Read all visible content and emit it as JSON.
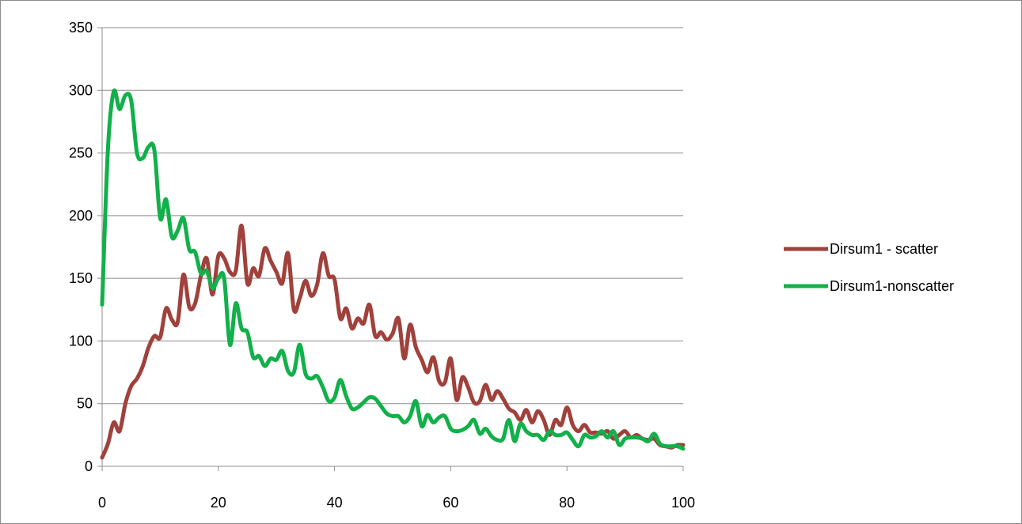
{
  "chart_data": {
    "type": "line",
    "title": "",
    "xlabel": "",
    "ylabel": "",
    "xlim": [
      0,
      100
    ],
    "ylim": [
      0,
      350
    ],
    "x_ticks": [
      0,
      20,
      40,
      60,
      80,
      100
    ],
    "y_ticks": [
      0,
      50,
      100,
      150,
      200,
      250,
      300,
      350
    ],
    "grid": "horizontal",
    "legend_position": "right",
    "series": [
      {
        "name": "Dirsum1 - scatter",
        "color": "#a0413c",
        "x": [
          0,
          1,
          2,
          3,
          4,
          5,
          6,
          7,
          8,
          9,
          10,
          11,
          12,
          13,
          14,
          15,
          16,
          17,
          18,
          19,
          20,
          21,
          22,
          23,
          24,
          25,
          26,
          27,
          28,
          29,
          30,
          31,
          32,
          33,
          34,
          35,
          36,
          37,
          38,
          39,
          40,
          41,
          42,
          43,
          44,
          45,
          46,
          47,
          48,
          49,
          50,
          51,
          52,
          53,
          54,
          55,
          56,
          57,
          58,
          59,
          60,
          61,
          62,
          63,
          64,
          65,
          66,
          67,
          68,
          69,
          70,
          71,
          72,
          73,
          74,
          75,
          76,
          77,
          78,
          79,
          80,
          81,
          82,
          83,
          84,
          85,
          86,
          87,
          88,
          89,
          90,
          91,
          92,
          93,
          94,
          95,
          96,
          97,
          98,
          99,
          100
        ],
        "values": [
          7,
          18,
          35,
          28,
          50,
          64,
          70,
          80,
          95,
          104,
          103,
          126,
          117,
          115,
          153,
          127,
          130,
          152,
          166,
          137,
          168,
          166,
          155,
          156,
          192,
          146,
          158,
          152,
          174,
          164,
          155,
          146,
          170,
          125,
          134,
          148,
          136,
          145,
          170,
          152,
          149,
          118,
          126,
          110,
          118,
          114,
          129,
          104,
          107,
          101,
          106,
          118,
          86,
          113,
          95,
          85,
          75,
          87,
          68,
          67,
          86,
          53,
          71,
          63,
          51,
          52,
          65,
          53,
          60,
          54,
          46,
          43,
          37,
          45,
          35,
          44,
          37,
          25,
          37,
          33,
          47,
          33,
          28,
          33,
          27,
          27,
          26,
          28,
          22,
          25,
          28,
          23,
          25,
          22,
          21,
          22,
          17,
          16,
          15,
          17,
          17
        ]
      },
      {
        "name": "Dirsum1-nonscatter",
        "color": "#12b04a",
        "x": [
          0,
          1,
          2,
          3,
          4,
          5,
          6,
          7,
          8,
          9,
          10,
          11,
          12,
          13,
          14,
          15,
          16,
          17,
          18,
          19,
          20,
          21,
          22,
          23,
          24,
          25,
          26,
          27,
          28,
          29,
          30,
          31,
          32,
          33,
          34,
          35,
          36,
          37,
          38,
          39,
          40,
          41,
          42,
          43,
          44,
          45,
          46,
          47,
          48,
          49,
          50,
          51,
          52,
          53,
          54,
          55,
          56,
          57,
          58,
          59,
          60,
          61,
          62,
          63,
          64,
          65,
          66,
          67,
          68,
          69,
          70,
          71,
          72,
          73,
          74,
          75,
          76,
          77,
          78,
          79,
          80,
          81,
          82,
          83,
          84,
          85,
          86,
          87,
          88,
          89,
          90,
          91,
          92,
          93,
          94,
          95,
          96,
          97,
          98,
          99,
          100
        ],
        "values": [
          129,
          253,
          299,
          285,
          296,
          292,
          250,
          246,
          255,
          252,
          198,
          213,
          183,
          188,
          198,
          173,
          171,
          154,
          156,
          142,
          150,
          150,
          97,
          130,
          110,
          107,
          87,
          88,
          80,
          86,
          85,
          92,
          76,
          75,
          97,
          74,
          70,
          72,
          63,
          52,
          55,
          69,
          56,
          46,
          47,
          51,
          55,
          54,
          48,
          42,
          40,
          40,
          35,
          40,
          52,
          32,
          41,
          35,
          39,
          40,
          30,
          28,
          29,
          32,
          37,
          26,
          30,
          24,
          21,
          22,
          37,
          20,
          34,
          28,
          25,
          25,
          21,
          28,
          25,
          25,
          27,
          21,
          16,
          25,
          23,
          24,
          28,
          23,
          28,
          17,
          22,
          23,
          23,
          22,
          20,
          26,
          18,
          16,
          16,
          16,
          14
        ]
      }
    ]
  }
}
